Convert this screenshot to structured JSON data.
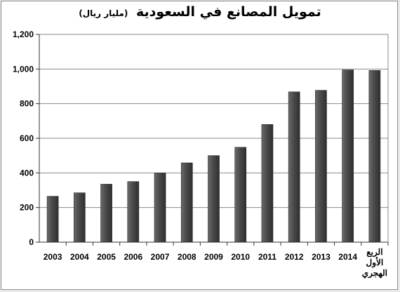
{
  "chart_data": {
    "type": "bar",
    "title": "تمويل المصانع في السعودية",
    "subtitle": "(مليار ريال)",
    "xlabel": "",
    "ylabel": "",
    "ylim": [
      0,
      1200
    ],
    "ytick_step": 200,
    "ytick_labels": [
      "0",
      "200",
      "400",
      "600",
      "800",
      "1,000",
      "1,200"
    ],
    "grid": true,
    "legend": "none",
    "categories": [
      "2003",
      "2004",
      "2005",
      "2006",
      "2007",
      "2008",
      "2009",
      "2010",
      "2011",
      "2012",
      "2013",
      "2014",
      "الربع الأول الهجري"
    ],
    "values": [
      265,
      285,
      335,
      350,
      400,
      458,
      500,
      548,
      680,
      868,
      877,
      995,
      992
    ],
    "bar_color": "#505050"
  }
}
